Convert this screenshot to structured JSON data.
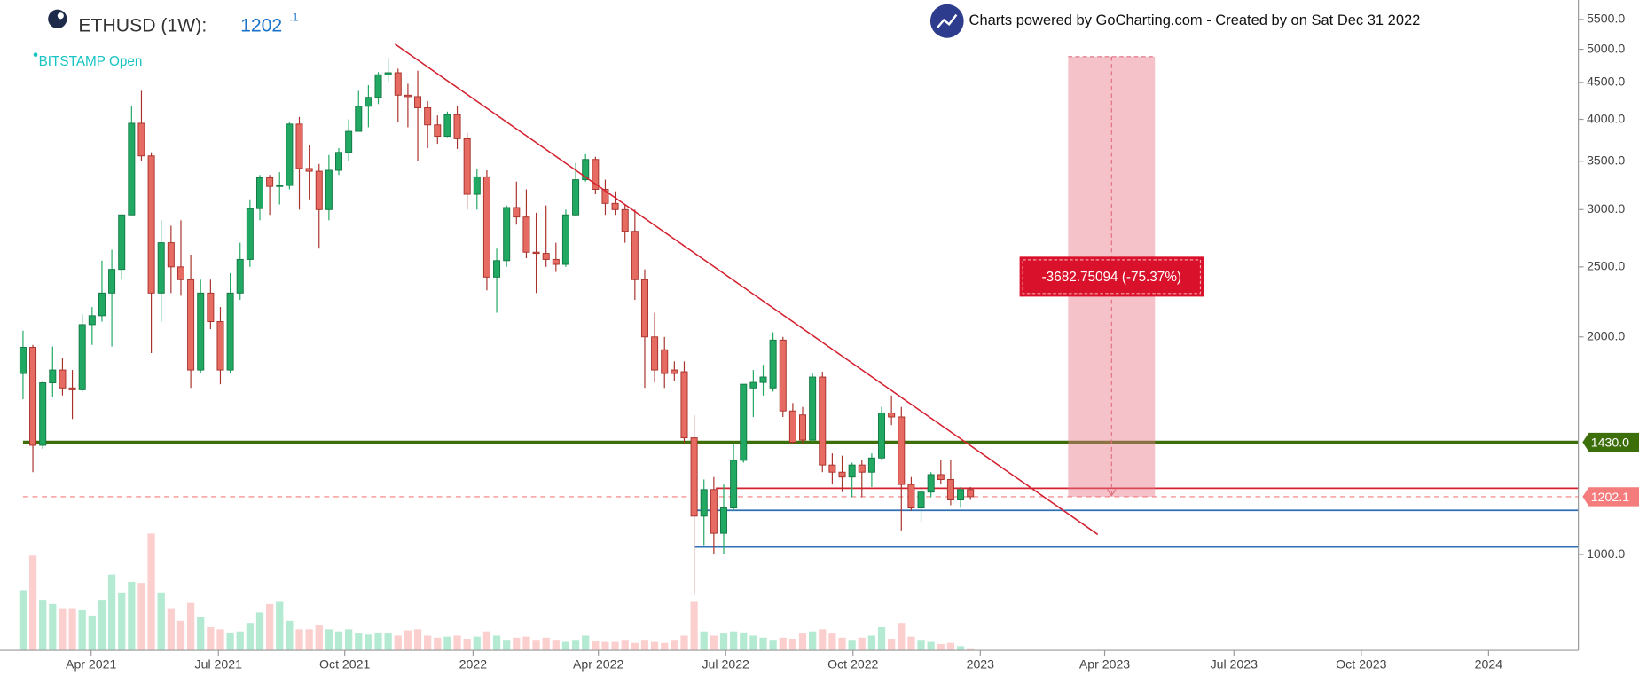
{
  "chart_data": {
    "type": "candlestick",
    "title": "ETHUSD (1W):",
    "price": "1202",
    "price_decimal": ".1",
    "exchange": "BITSTAMP Open",
    "credit": "Charts powered by GoCharting.com - Created by  on Sat Dec 31 2022",
    "log_scale": true,
    "up_color": "#21a862",
    "down_color": "#e66b62",
    "volume_up_color": "#b5ead2",
    "volume_down_color": "#fccfcf",
    "xlim": [
      -2.33,
      157.6
    ],
    "ylim": [
      737,
      5850
    ],
    "xticks": [
      {
        "value": 6.9,
        "label": "Apr 2021"
      },
      {
        "value": 19.8,
        "label": "Jul 2021"
      },
      {
        "value": 32.6,
        "label": "Oct 2021"
      },
      {
        "value": 45.6,
        "label": "2022"
      },
      {
        "value": 58.3,
        "label": "Apr 2022"
      },
      {
        "value": 71.2,
        "label": "Jul 2022"
      },
      {
        "value": 84.1,
        "label": "Oct 2022"
      },
      {
        "value": 97.0,
        "label": "2023"
      },
      {
        "value": 109.6,
        "label": "Apr 2023"
      },
      {
        "value": 122.7,
        "label": "Jul 2023"
      },
      {
        "value": 135.6,
        "label": "Oct 2023"
      },
      {
        "value": 148.5,
        "label": "2024"
      }
    ],
    "yticks": [
      {
        "value": 1000,
        "label": "1000.0"
      },
      {
        "value": 2000,
        "label": "2000.0"
      },
      {
        "value": 2500,
        "label": "2500.0"
      },
      {
        "value": 3000,
        "label": "3000.0"
      },
      {
        "value": 3500,
        "label": "3500.0"
      },
      {
        "value": 4000,
        "label": "4000.0"
      },
      {
        "value": 4500,
        "label": "4500.0"
      },
      {
        "value": 5000,
        "label": "5000.0"
      },
      {
        "value": 5500,
        "label": "5500.0"
      }
    ],
    "ohlc": [
      [
        1780,
        2040,
        1640,
        1935
      ],
      [
        1935,
        1950,
        1300,
        1416
      ],
      [
        1416,
        1740,
        1400,
        1728
      ],
      [
        1728,
        1940,
        1650,
        1800
      ],
      [
        1800,
        1870,
        1660,
        1700
      ],
      [
        1700,
        1800,
        1540,
        1690
      ],
      [
        1690,
        2150,
        1680,
        2080
      ],
      [
        2080,
        2200,
        1950,
        2140
      ],
      [
        2140,
        2550,
        2100,
        2300
      ],
      [
        2300,
        2640,
        1940,
        2480
      ],
      [
        2480,
        2950,
        2400,
        2950
      ],
      [
        2950,
        4180,
        2950,
        3950
      ],
      [
        3950,
        4380,
        3500,
        3560
      ],
      [
        3560,
        3600,
        1900,
        2300
      ],
      [
        2300,
        2900,
        2100,
        2700
      ],
      [
        2700,
        2850,
        2300,
        2500
      ],
      [
        2500,
        2900,
        2280,
        2400
      ],
      [
        2400,
        2600,
        1700,
        1800
      ],
      [
        1800,
        2400,
        1780,
        2300
      ],
      [
        2300,
        2400,
        2050,
        2100
      ],
      [
        2100,
        2200,
        1720,
        1800
      ],
      [
        1800,
        2450,
        1780,
        2300
      ],
      [
        2300,
        2700,
        2250,
        2560
      ],
      [
        2560,
        3100,
        2500,
        3010
      ],
      [
        3010,
        3350,
        2900,
        3320
      ],
      [
        3320,
        3350,
        2950,
        3230
      ],
      [
        3230,
        3380,
        3050,
        3240
      ],
      [
        3240,
        3970,
        3200,
        3940
      ],
      [
        3940,
        4030,
        3000,
        3420
      ],
      [
        3420,
        3680,
        3100,
        3390
      ],
      [
        3390,
        3470,
        2650,
        3000
      ],
      [
        3000,
        3570,
        2900,
        3400
      ],
      [
        3400,
        3650,
        3350,
        3600
      ],
      [
        3600,
        4000,
        3500,
        3850
      ],
      [
        3850,
        4380,
        3850,
        4170
      ],
      [
        4170,
        4460,
        3900,
        4290
      ],
      [
        4290,
        4650,
        4200,
        4610
      ],
      [
        4610,
        4870,
        4510,
        4640
      ],
      [
        4640,
        4700,
        3960,
        4320
      ],
      [
        4320,
        4480,
        3900,
        4300
      ],
      [
        4300,
        4670,
        3500,
        4150
      ],
      [
        4150,
        4240,
        3650,
        3930
      ],
      [
        3930,
        4050,
        3700,
        3790
      ],
      [
        3790,
        4100,
        3780,
        4060
      ],
      [
        4060,
        4170,
        3640,
        3760
      ],
      [
        3760,
        3830,
        3000,
        3150
      ],
      [
        3150,
        3420,
        3000,
        3330
      ],
      [
        3330,
        3400,
        2320,
        2420
      ],
      [
        2420,
        2650,
        2160,
        2550
      ],
      [
        2550,
        3040,
        2500,
        3020
      ],
      [
        3020,
        3280,
        2860,
        2930
      ],
      [
        2930,
        3200,
        2570,
        2620
      ],
      [
        2620,
        2970,
        2300,
        2610
      ],
      [
        2610,
        3040,
        2500,
        2560
      ],
      [
        2560,
        2700,
        2460,
        2520
      ],
      [
        2520,
        3000,
        2500,
        2950
      ],
      [
        2950,
        3480,
        2940,
        3300
      ],
      [
        3300,
        3580,
        3280,
        3520
      ],
      [
        3520,
        3550,
        3150,
        3200
      ],
      [
        3200,
        3300,
        2950,
        3060
      ],
      [
        3060,
        3180,
        2950,
        3000
      ],
      [
        3000,
        3050,
        2700,
        2800
      ],
      [
        2800,
        3000,
        2250,
        2400
      ],
      [
        2400,
        2480,
        1700,
        2000
      ],
      [
        2000,
        2160,
        1730,
        1800
      ],
      [
        1920,
        2000,
        1700,
        1780
      ],
      [
        1800,
        1850,
        1740,
        1780
      ],
      [
        1790,
        1850,
        1420,
        1450
      ],
      [
        1450,
        1560,
        880,
        1130
      ],
      [
        1130,
        1270,
        1030,
        1230
      ],
      [
        1230,
        1280,
        1000,
        1070
      ],
      [
        1070,
        1250,
        1000,
        1160
      ],
      [
        1160,
        1420,
        1150,
        1350
      ],
      [
        1350,
        1720,
        1340,
        1720
      ],
      [
        1700,
        1800,
        1550,
        1730
      ],
      [
        1730,
        1830,
        1660,
        1760
      ],
      [
        1700,
        2030,
        1680,
        1980
      ],
      [
        1980,
        2000,
        1550,
        1580
      ],
      [
        1580,
        1620,
        1420,
        1430
      ],
      [
        1560,
        1600,
        1420,
        1440
      ],
      [
        1440,
        1780,
        1430,
        1760
      ],
      [
        1760,
        1790,
        1300,
        1330
      ],
      [
        1330,
        1380,
        1250,
        1300
      ],
      [
        1300,
        1370,
        1220,
        1280
      ],
      [
        1280,
        1340,
        1200,
        1330
      ],
      [
        1330,
        1350,
        1200,
        1300
      ],
      [
        1300,
        1380,
        1240,
        1360
      ],
      [
        1360,
        1600,
        1350,
        1570
      ],
      [
        1570,
        1660,
        1510,
        1550
      ],
      [
        1550,
        1600,
        1080,
        1250
      ],
      [
        1250,
        1280,
        1150,
        1160
      ],
      [
        1160,
        1240,
        1110,
        1220
      ],
      [
        1220,
        1300,
        1200,
        1290
      ],
      [
        1290,
        1350,
        1250,
        1270
      ],
      [
        1270,
        1350,
        1170,
        1190
      ],
      [
        1190,
        1240,
        1160,
        1230
      ],
      [
        1230,
        1240,
        1190,
        1202.1
      ]
    ],
    "volume": [
      57,
      90,
      48,
      44,
      40,
      40,
      38,
      33,
      48,
      72,
      55,
      65,
      64,
      111,
      55,
      40,
      28,
      45,
      32,
      22,
      20,
      17,
      18,
      26,
      36,
      44,
      46,
      28,
      20,
      20,
      24,
      20,
      18,
      20,
      16,
      15,
      17,
      16,
      14,
      19,
      20,
      14,
      12,
      13,
      14,
      11,
      13,
      18,
      14,
      10,
      12,
      13,
      10,
      12,
      10,
      8,
      10,
      14,
      9,
      8,
      8,
      10,
      7,
      10,
      8,
      7,
      10,
      14,
      46,
      18,
      14,
      16,
      18,
      17,
      14,
      12,
      10,
      12,
      11,
      16,
      18,
      20,
      16,
      12,
      10,
      12,
      14,
      22,
      11,
      26,
      13,
      10,
      8,
      6,
      7,
      4,
      2
    ],
    "trendline": {
      "x": [
        37.7,
        108.9
      ],
      "y": [
        5082,
        1066
      ],
      "color": "#d4202f"
    },
    "hlines": [
      {
        "value": 1430,
        "label": "1430.0",
        "color": "#3c6e0a",
        "start": 0
      },
      {
        "value": 1235,
        "color": "#d4202f",
        "start": 70.2
      },
      {
        "value": 1151,
        "color": "#2f6fb5",
        "start": 68.1
      },
      {
        "value": 1024,
        "color": "#2f6fb5",
        "start": 68.1
      }
    ],
    "price_line": {
      "value": 1202.1,
      "label": "1202.1",
      "color": "#f47c7c",
      "start": 0
    },
    "measure": {
      "x": [
        105.9,
        114.7
      ],
      "y": [
        4884.85,
        1202.1
      ],
      "label": "-3682.75094 (-75.37%)",
      "color": "#d9112a"
    }
  }
}
